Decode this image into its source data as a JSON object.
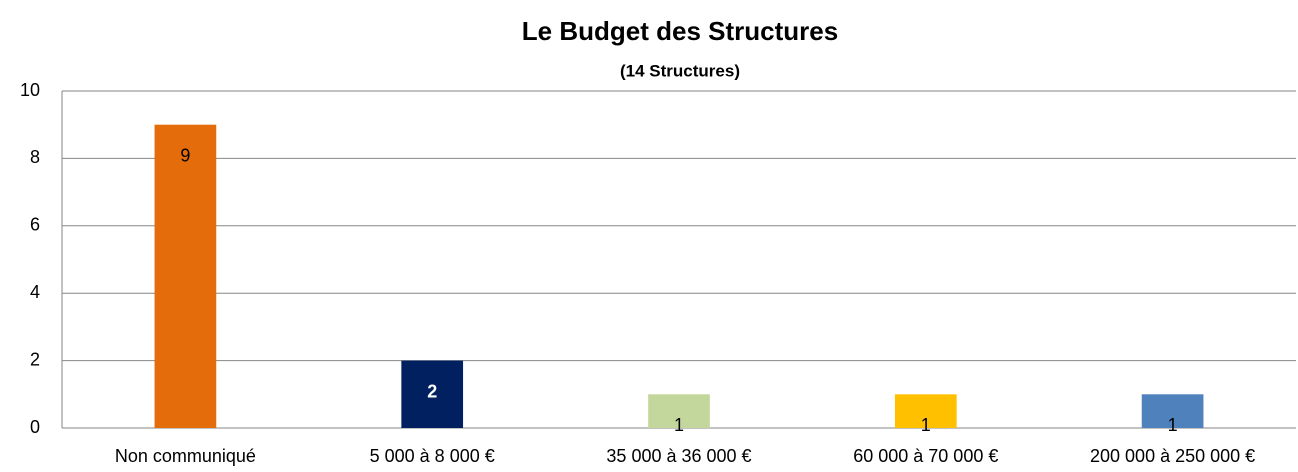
{
  "chart_data": {
    "type": "bar",
    "title": "Le Budget des Structures",
    "subtitle": "(14 Structures)",
    "categories": [
      "Non communiqué",
      "5 000 à 8 000 €",
      "35 000 à 36 000 €",
      "60 000 à 70 000 €",
      "200 000 à 250 000  €"
    ],
    "values": [
      9,
      2,
      1,
      1,
      1
    ],
    "colors": [
      "#e46c0a",
      "#002060",
      "#c3d69b",
      "#ffc000",
      "#4f81bd"
    ],
    "ylim": [
      0,
      10
    ],
    "yticks": [
      0,
      2,
      4,
      6,
      8,
      10
    ],
    "grid": true
  }
}
